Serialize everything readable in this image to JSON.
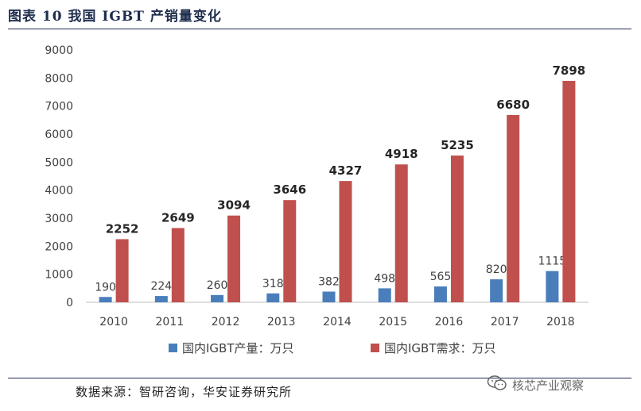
{
  "figure": {
    "title": "图表 10 我国 IGBT 产销量变化",
    "source": "数据来源：智研咨询，华安证券研究所",
    "watermark": "核芯产业观察"
  },
  "colors": {
    "production": "#4a7ebb",
    "demand": "#c0504d",
    "title": "#1f2d4e"
  },
  "chart_data": {
    "type": "bar",
    "categories": [
      "2010",
      "2011",
      "2012",
      "2013",
      "2014",
      "2015",
      "2016",
      "2017",
      "2018"
    ],
    "series": [
      {
        "name": "国内IGBT产量：万只",
        "values": [
          190,
          224,
          260,
          318,
          382,
          498,
          565,
          820,
          1115
        ]
      },
      {
        "name": "国内IGBT需求：万只",
        "values": [
          2252,
          2649,
          3094,
          3646,
          4327,
          4918,
          5235,
          6680,
          7898
        ]
      }
    ],
    "ylim": [
      0,
      9000
    ],
    "yticks": [
      0,
      1000,
      2000,
      3000,
      4000,
      5000,
      6000,
      7000,
      8000,
      9000
    ],
    "grid": false,
    "legend_position": "bottom",
    "xlabel": "",
    "ylabel": ""
  }
}
